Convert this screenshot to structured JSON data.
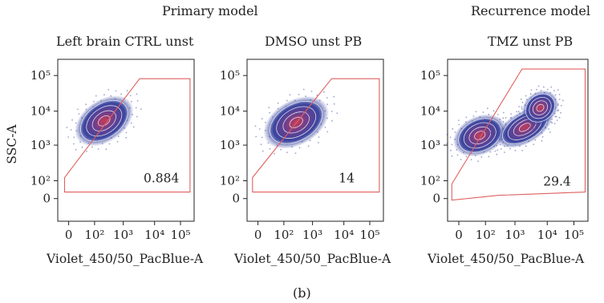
{
  "figure": {
    "panel_label": "(b)",
    "group_titles": [
      "Primary model",
      "Recurrence model"
    ]
  },
  "chart_data": [
    {
      "type": "scatter",
      "title": "Left brain CTRL unst",
      "xlabel": "Violet_450/50_PacBlue-A",
      "ylabel": "SSC-A",
      "x_scale": "biexponential",
      "y_scale": "biexponential",
      "x_ticks": [
        "0",
        "10²",
        "10³",
        "10⁴",
        "10⁵"
      ],
      "y_ticks": [
        "10⁵",
        "10⁴",
        "10³",
        "10²",
        "0"
      ],
      "gate_percent": 0.884,
      "gate_label": "0.884",
      "population_color": "#3b46a0",
      "gate_color": "#e06060"
    },
    {
      "type": "scatter",
      "title": "DMSO unst PB",
      "xlabel": "Violet_450/50_PacBlue-A",
      "ylabel": "",
      "x_scale": "biexponential",
      "y_scale": "biexponential",
      "x_ticks": [
        "0",
        "10²",
        "10³",
        "10⁴",
        "10⁵"
      ],
      "y_ticks": [
        "10⁵",
        "10⁴",
        "10³",
        "10²",
        "0"
      ],
      "gate_percent": 14,
      "gate_label": "14",
      "population_color": "#3b46a0",
      "gate_color": "#e06060"
    },
    {
      "type": "scatter",
      "title": "TMZ unst PB",
      "xlabel": "Violet_450/50_PacBlue-A",
      "ylabel": "",
      "x_scale": "biexponential",
      "y_scale": "biexponential",
      "x_ticks": [
        "0",
        "10²",
        "10³",
        "10⁴",
        "10⁵"
      ],
      "y_ticks": [
        "10⁵",
        "10⁴",
        "10³",
        "10²",
        "0"
      ],
      "gate_percent": 29.4,
      "gate_label": "29.4",
      "population_color": "#3b46a0",
      "gate_color": "#e06060"
    }
  ]
}
